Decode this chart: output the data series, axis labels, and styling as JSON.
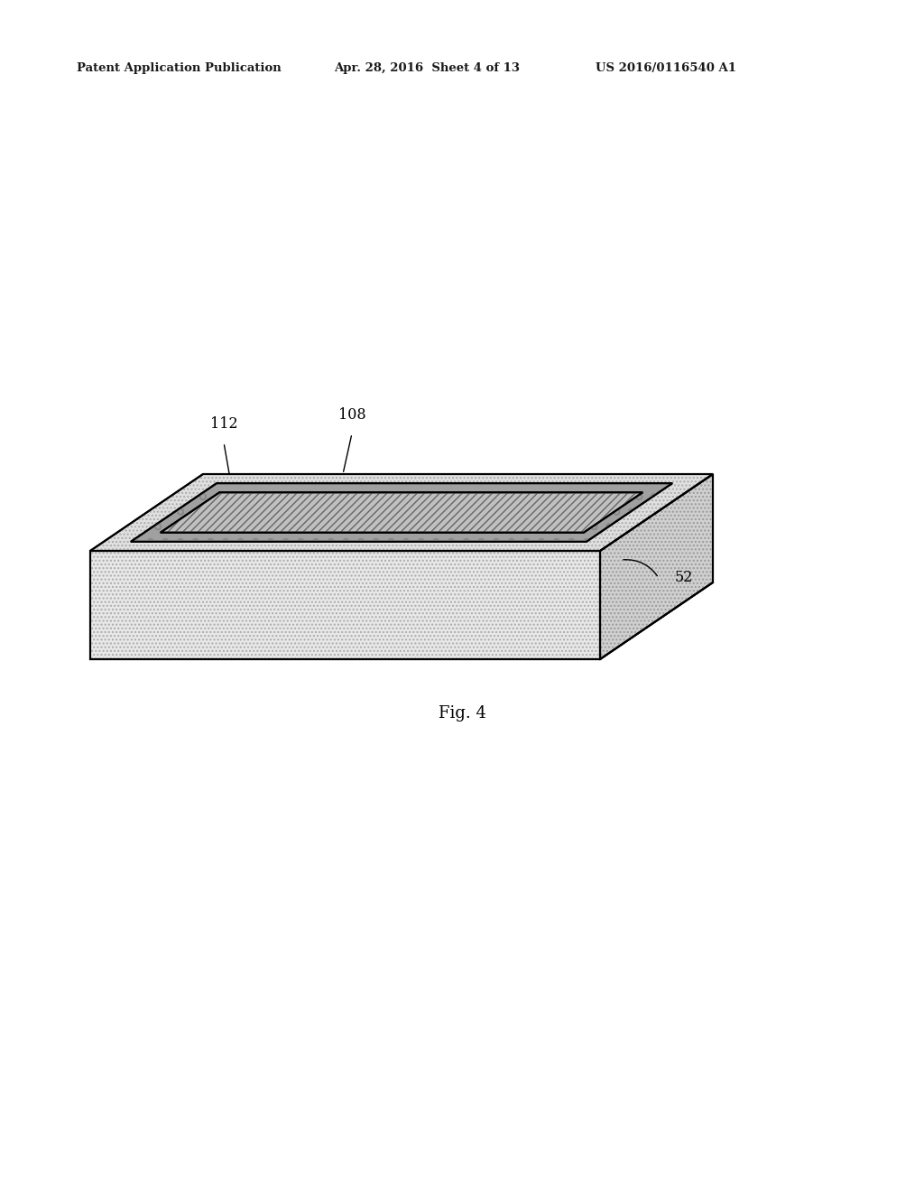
{
  "header_left": "Patent Application Publication",
  "header_mid": "Apr. 28, 2016  Sheet 4 of 13",
  "header_right": "US 2016/0116540 A1",
  "fig_label": "Fig. 4",
  "label_112": "112",
  "label_108": "108",
  "label_52": "52",
  "background_color": "#ffffff"
}
